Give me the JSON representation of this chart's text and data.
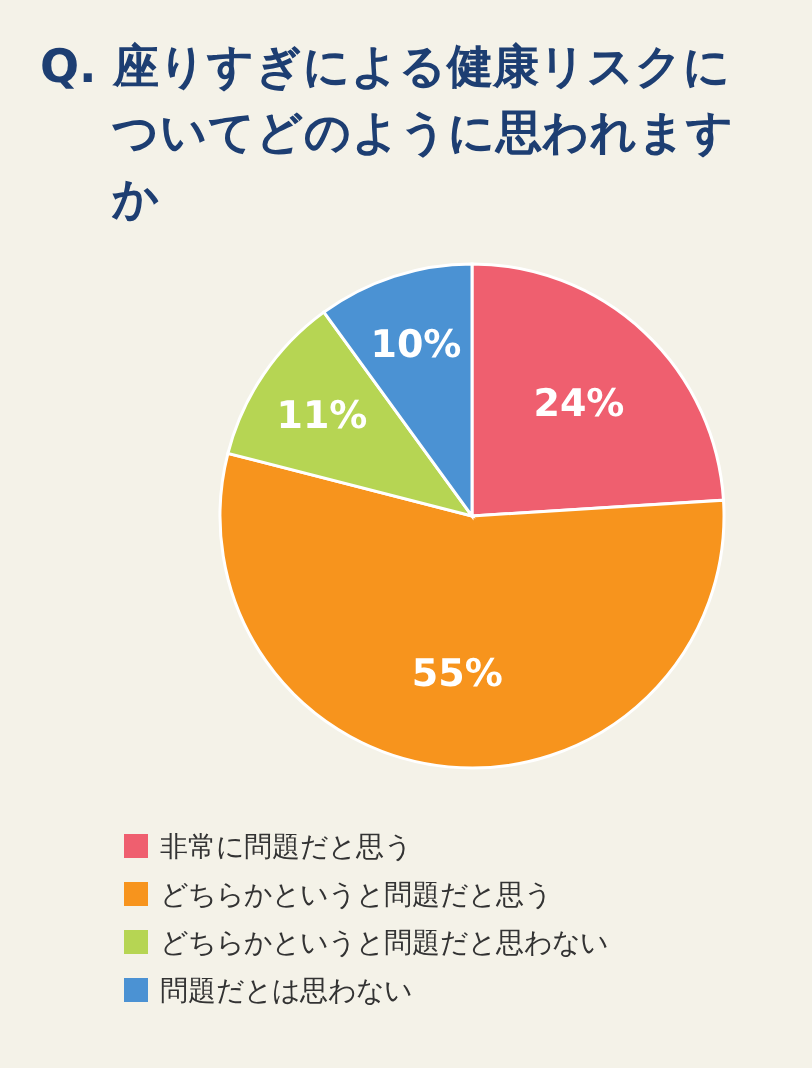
{
  "chart_data": {
    "type": "pie",
    "title": "Q. 座りすぎによる健康リスクについてどのように思われますか",
    "categories": [
      "非常に問題だと思う",
      "どちらかというと問題だと思う",
      "どちらかというと問題だと思わない",
      "問題だとは思わない"
    ],
    "values": [
      24,
      55,
      11,
      10
    ],
    "value_labels": [
      "24%",
      "55%",
      "11%",
      "10%"
    ],
    "colors": [
      "#ef5f6f",
      "#f7941d",
      "#b6d553",
      "#4b92d3"
    ],
    "legend": "bottom"
  }
}
